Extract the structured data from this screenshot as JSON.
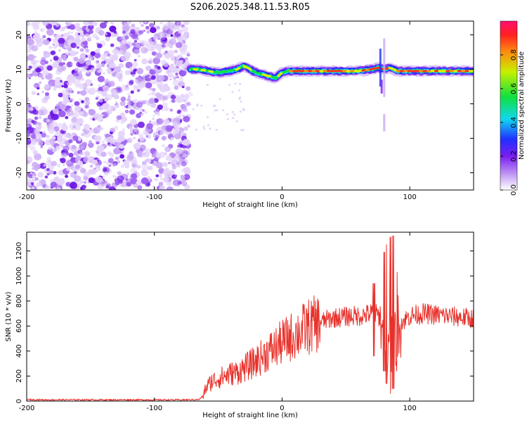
{
  "page_title": "S206.2025.348.11.53.R05",
  "chart_data": [
    {
      "type": "heatmap",
      "title": "S206.2025.348.11.53.R05",
      "xlabel": "Height of straight line (km)",
      "ylabel": "Frequency (Hz)",
      "xlim": [
        -200,
        150
      ],
      "ylim": [
        -25,
        24
      ],
      "x_ticks": [
        -200,
        -100,
        0,
        100
      ],
      "x_tick_labels": [
        "-200",
        "-100",
        "0",
        "100"
      ],
      "y_ticks": [
        -20,
        -10,
        0,
        10,
        20
      ],
      "y_tick_labels": [
        "-20",
        "-10",
        "0",
        "10",
        "20"
      ],
      "noise_region_x": [
        -200,
        -73
      ],
      "ridge": {
        "x": [
          -72,
          -65,
          -58,
          -50,
          -42,
          -35,
          -30,
          -25,
          -20,
          -15,
          -10,
          -5,
          0,
          5,
          10,
          20,
          30,
          40,
          50,
          60,
          70,
          75,
          80,
          85,
          90,
          100,
          110,
          120,
          130,
          140,
          150
        ],
        "frequency_hz": [
          10,
          10,
          9.5,
          9,
          9.5,
          10,
          11,
          10,
          9,
          8.5,
          8,
          7.5,
          9,
          9.5,
          9.5,
          9.5,
          9.5,
          9.5,
          9.5,
          9.5,
          10,
          10.5,
          10,
          10.5,
          9.5,
          9.5,
          9.5,
          9.5,
          9.5,
          9.5,
          9.5
        ]
      },
      "colorbar": {
        "label": "Normalized spectral amplitude",
        "range": [
          0,
          1
        ],
        "ticks": [
          0,
          0.2,
          0.4,
          0.6,
          0.8
        ],
        "tick_labels": [
          "0.0",
          "0.2",
          "0.4",
          "0.6",
          "0.8"
        ]
      }
    },
    {
      "type": "line",
      "xlabel": "Height of straight line (km)",
      "ylabel": "SNR (10 * v/v)",
      "xlim": [
        -200,
        150
      ],
      "ylim": [
        0,
        1350
      ],
      "x_ticks": [
        -200,
        -100,
        0,
        100
      ],
      "x_tick_labels": [
        "-200",
        "-100",
        "0",
        "100"
      ],
      "y_ticks": [
        0,
        200,
        400,
        600,
        800,
        1000,
        1200
      ],
      "y_tick_labels": [
        "0",
        "200",
        "400",
        "600",
        "800",
        "1000",
        "1200"
      ],
      "series": [
        {
          "name": "SNR",
          "color": "#e8312b",
          "x": [
            -200,
            -180,
            -160,
            -140,
            -120,
            -100,
            -80,
            -65,
            -62,
            -60,
            -55,
            -50,
            -45,
            -40,
            -35,
            -30,
            -25,
            -20,
            -15,
            -10,
            -5,
            0,
            5,
            10,
            15,
            20,
            25,
            30,
            35,
            40,
            45,
            50,
            55,
            60,
            65,
            70,
            75,
            80,
            82,
            84,
            86,
            88,
            90,
            95,
            100,
            110,
            120,
            130,
            140,
            150
          ],
          "values": [
            12,
            10,
            11,
            10,
            11,
            10,
            10,
            12,
            40,
            100,
            160,
            180,
            200,
            220,
            230,
            260,
            290,
            320,
            360,
            400,
            430,
            470,
            500,
            530,
            560,
            590,
            610,
            630,
            650,
            665,
            670,
            675,
            680,
            680,
            690,
            700,
            690,
            620,
            560,
            600,
            640,
            620,
            600,
            640,
            680,
            700,
            690,
            680,
            670,
            660
          ]
        }
      ],
      "spikes": [
        {
          "x": 80,
          "max": 1190,
          "min": 240
        },
        {
          "x": 82,
          "max": 1250,
          "min": 140
        },
        {
          "x": 85,
          "max": 1310,
          "min": 60
        },
        {
          "x": 87,
          "max": 1320,
          "min": 100
        },
        {
          "x": 90,
          "max": 1030,
          "min": 240
        },
        {
          "x": 72,
          "max": 940,
          "min": 360
        }
      ]
    }
  ]
}
